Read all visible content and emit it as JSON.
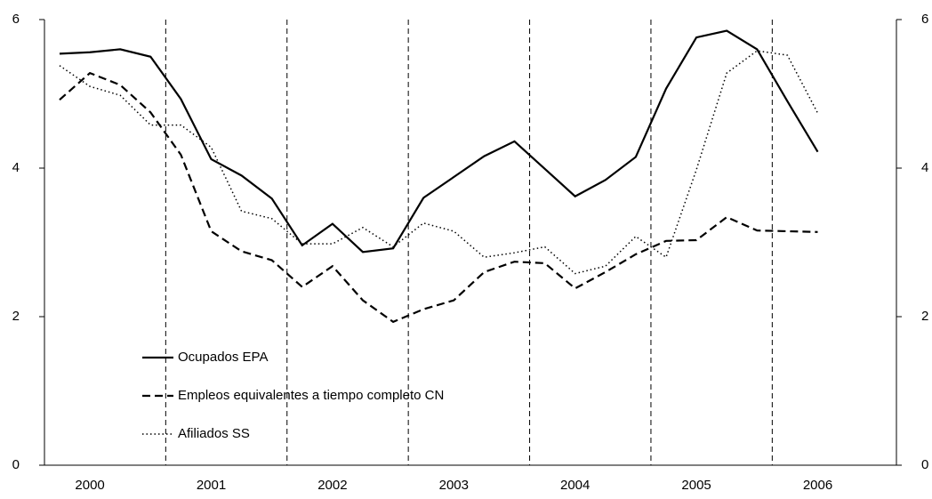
{
  "chart_data": {
    "type": "line",
    "categories": [
      null,
      "2000",
      null,
      null,
      null,
      "2001",
      null,
      null,
      null,
      "2002",
      null,
      null,
      null,
      "2003",
      null,
      null,
      null,
      "2004",
      null,
      null,
      null,
      "2005",
      null,
      null,
      null,
      "2006"
    ],
    "series": [
      {
        "name": "Ocupados EPA",
        "color": "#000000",
        "dash": "solid",
        "values": [
          5.54,
          5.56,
          5.6,
          5.5,
          4.93,
          4.12,
          3.9,
          3.59,
          2.96,
          3.25,
          2.87,
          2.92,
          3.6,
          3.88,
          4.16,
          4.36,
          3.99,
          3.62,
          3.84,
          4.15,
          5.07,
          5.76,
          5.85,
          5.6,
          4.9,
          4.22
        ]
      },
      {
        "name": "Empleos equivalentes a tiempo completo CN",
        "color": "#000000",
        "dash": "dashed",
        "values": [
          4.92,
          5.28,
          5.12,
          4.75,
          4.18,
          3.15,
          2.88,
          2.76,
          2.4,
          2.68,
          2.22,
          1.93,
          2.1,
          2.22,
          2.6,
          2.74,
          2.72,
          2.38,
          2.6,
          2.84,
          3.02,
          3.03,
          3.34,
          3.16,
          3.15,
          3.14
        ]
      },
      {
        "name": "Afiliados SS",
        "color": "#000000",
        "dash": "dotted",
        "values": [
          5.38,
          5.1,
          4.98,
          4.58,
          4.58,
          4.28,
          3.42,
          3.32,
          2.98,
          2.98,
          3.2,
          2.94,
          3.26,
          3.15,
          2.8,
          2.86,
          2.94,
          2.58,
          2.68,
          3.08,
          2.8,
          3.98,
          5.28,
          5.58,
          5.52,
          4.74
        ]
      }
    ],
    "ylim": [
      0,
      6
    ],
    "yticks": [
      0,
      2,
      4,
      6
    ],
    "y2lim": [
      0,
      6
    ],
    "y2ticks": [
      0,
      2,
      4,
      6
    ],
    "legend": "lower left"
  }
}
